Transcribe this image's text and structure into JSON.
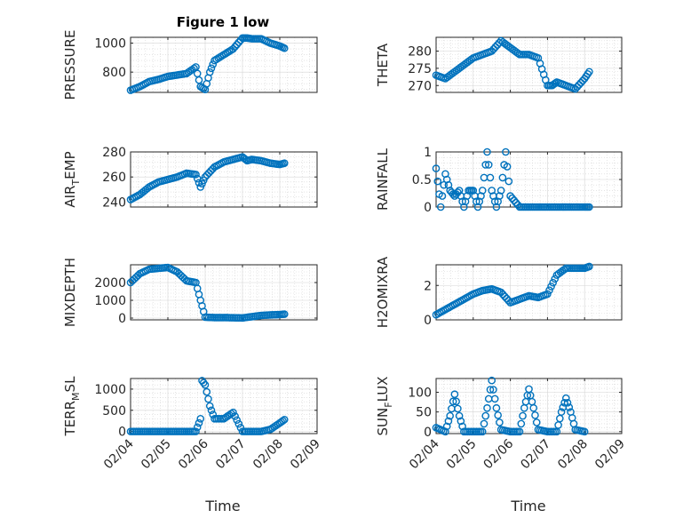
{
  "figure": {
    "title": "Figure 1 low",
    "xlabel": "Time",
    "date_ticks": [
      "02/04",
      "02/05",
      "02/06",
      "02/07",
      "02/08",
      "02/09"
    ]
  },
  "colors": {
    "marker": "#0072BD",
    "axis": "#262626",
    "grid": "#d4d4d4"
  },
  "chart_data": [
    {
      "type": "scatter",
      "key": "pressure",
      "ylabel": "PRESSURE",
      "ylabel_sub": "",
      "ylim": [
        660,
        1040
      ],
      "yticks": [
        800,
        1000
      ],
      "ytick_labels": [
        "800",
        "1000"
      ],
      "x": [
        "02/04 00:00",
        "02/04 06:00",
        "02/04 12:00",
        "02/04 18:00",
        "02/05 00:00",
        "02/05 06:00",
        "02/05 12:00",
        "02/05 18:00",
        "02/05 21:00",
        "02/06 00:00",
        "02/06 03:00",
        "02/06 06:00",
        "02/06 12:00",
        "02/06 18:00",
        "02/07 00:00",
        "02/07 03:00",
        "02/07 06:00",
        "02/07 12:00",
        "02/07 18:00",
        "02/08 00:00",
        "02/08 03:00"
      ],
      "values": [
        675,
        700,
        735,
        750,
        770,
        780,
        790,
        835,
        700,
        680,
        800,
        880,
        920,
        960,
        1035,
        1035,
        1030,
        1030,
        1000,
        980,
        965
      ]
    },
    {
      "type": "scatter",
      "key": "theta",
      "ylabel": "THETA",
      "ylabel_sub": "",
      "ylim": [
        268,
        284
      ],
      "yticks": [
        270,
        275,
        280
      ],
      "ytick_labels": [
        "270",
        "275",
        "280"
      ],
      "x": [
        "02/04 00:00",
        "02/04 06:00",
        "02/04 12:00",
        "02/04 18:00",
        "02/05 00:00",
        "02/05 06:00",
        "02/05 12:00",
        "02/05 18:00",
        "02/06 00:00",
        "02/06 06:00",
        "02/06 12:00",
        "02/06 18:00",
        "02/07 00:00",
        "02/07 03:00",
        "02/07 06:00",
        "02/07 12:00",
        "02/07 18:00",
        "02/08 00:00",
        "02/08 03:00"
      ],
      "values": [
        273,
        272,
        274,
        276,
        278,
        279,
        280,
        283,
        281,
        279,
        279,
        278,
        270,
        270,
        271,
        270,
        269,
        272,
        274
      ]
    },
    {
      "type": "scatter",
      "key": "air_temp",
      "ylabel": "AIR",
      "ylabel_sub": "T",
      "ylabel_rest": "EMP",
      "ylim": [
        236,
        280
      ],
      "yticks": [
        240,
        260,
        280
      ],
      "ytick_labels": [
        "240",
        "260",
        "280"
      ],
      "x": [
        "02/04 00:00",
        "02/04 06:00",
        "02/04 12:00",
        "02/04 18:00",
        "02/05 00:00",
        "02/05 06:00",
        "02/05 12:00",
        "02/05 18:00",
        "02/05 21:00",
        "02/06 00:00",
        "02/06 06:00",
        "02/06 12:00",
        "02/06 18:00",
        "02/07 00:00",
        "02/07 03:00",
        "02/07 06:00",
        "02/07 12:00",
        "02/07 18:00",
        "02/08 00:00",
        "02/08 03:00"
      ],
      "values": [
        242,
        246,
        252,
        256,
        258,
        260,
        263,
        262,
        252,
        260,
        268,
        272,
        274,
        276,
        273,
        274,
        273,
        271,
        270,
        271
      ]
    },
    {
      "type": "scatter",
      "key": "rainfall",
      "ylabel": "RAINFALL",
      "ylabel_sub": "",
      "ylim": [
        0,
        1
      ],
      "yticks": [
        0,
        0.5,
        1
      ],
      "ytick_labels": [
        "0",
        "0.5",
        "1"
      ],
      "x": [
        "02/04 00:00",
        "02/04 03:00",
        "02/04 06:00",
        "02/04 09:00",
        "02/04 12:00",
        "02/04 15:00",
        "02/04 18:00",
        "02/04 21:00",
        "02/05 00:00",
        "02/05 03:00",
        "02/05 06:00",
        "02/05 09:00",
        "02/05 12:00",
        "02/05 15:00",
        "02/05 18:00",
        "02/05 21:00",
        "02/06 00:00",
        "02/06 06:00",
        "02/06 12:00",
        "02/06 18:00",
        "02/07 00:00",
        "02/07 06:00",
        "02/07 12:00",
        "02/07 18:00",
        "02/08 00:00",
        "02/08 03:00"
      ],
      "values": [
        0.7,
        0,
        0.6,
        0.3,
        0.2,
        0.3,
        0,
        0.3,
        0.3,
        0,
        0.3,
        1,
        0.3,
        0,
        0.3,
        1,
        0.2,
        0,
        0,
        0,
        0,
        0,
        0,
        0,
        0,
        0
      ]
    },
    {
      "type": "scatter",
      "key": "mixdepth",
      "ylabel": "MIXDEPTH",
      "ylabel_sub": "",
      "ylim": [
        -100,
        3000
      ],
      "yticks": [
        0,
        1000,
        2000
      ],
      "ytick_labels": [
        "0",
        "1000",
        "2000"
      ],
      "x": [
        "02/04 00:00",
        "02/04 06:00",
        "02/04 12:00",
        "02/04 18:00",
        "02/05 00:00",
        "02/05 06:00",
        "02/05 12:00",
        "02/05 18:00",
        "02/05 21:00",
        "02/06 00:00",
        "02/06 06:00",
        "02/06 12:00",
        "02/06 18:00",
        "02/07 00:00",
        "02/07 06:00",
        "02/07 12:00",
        "02/07 18:00",
        "02/08 00:00",
        "02/08 03:00"
      ],
      "values": [
        2000,
        2500,
        2750,
        2800,
        2850,
        2600,
        2100,
        2000,
        1000,
        50,
        30,
        30,
        20,
        10,
        80,
        150,
        180,
        200,
        220
      ]
    },
    {
      "type": "scatter",
      "key": "h2omixra",
      "ylabel": "H2OMIXRA",
      "ylabel_sub": "",
      "ylim": [
        0,
        3.2
      ],
      "yticks": [
        0,
        2
      ],
      "ytick_labels": [
        "0",
        "2"
      ],
      "x": [
        "02/04 00:00",
        "02/04 06:00",
        "02/04 12:00",
        "02/04 18:00",
        "02/05 00:00",
        "02/05 06:00",
        "02/05 12:00",
        "02/05 18:00",
        "02/06 00:00",
        "02/06 06:00",
        "02/06 12:00",
        "02/06 18:00",
        "02/07 00:00",
        "02/07 06:00",
        "02/07 12:00",
        "02/07 18:00",
        "02/08 00:00",
        "02/08 03:00"
      ],
      "values": [
        0.3,
        0.6,
        0.9,
        1.2,
        1.5,
        1.7,
        1.8,
        1.6,
        1.0,
        1.2,
        1.4,
        1.3,
        1.5,
        2.6,
        3.0,
        3.0,
        3.0,
        3.1
      ]
    },
    {
      "type": "scatter",
      "key": "terr_msl",
      "ylabel": "TERR",
      "ylabel_sub": "M",
      "ylabel_rest": "SL",
      "ylim": [
        -50,
        1250
      ],
      "yticks": [
        0,
        500,
        1000
      ],
      "ytick_labels": [
        "0",
        "500",
        "1000"
      ],
      "x": [
        "02/04 00:00",
        "02/04 06:00",
        "02/04 12:00",
        "02/04 18:00",
        "02/05 00:00",
        "02/05 06:00",
        "02/05 12:00",
        "02/05 18:00",
        "02/05 21:00",
        "02/05 22:00",
        "02/06 00:00",
        "02/06 03:00",
        "02/06 06:00",
        "02/06 12:00",
        "02/06 18:00",
        "02/07 00:00",
        "02/07 06:00",
        "02/07 12:00",
        "02/07 18:00",
        "02/08 00:00",
        "02/08 03:00"
      ],
      "values": [
        0,
        0,
        0,
        0,
        0,
        0,
        0,
        0,
        300,
        1200,
        1100,
        600,
        300,
        300,
        450,
        0,
        0,
        0,
        50,
        200,
        280
      ]
    },
    {
      "type": "scatter",
      "key": "sun_flux",
      "ylabel": "SUN",
      "ylabel_sub": "F",
      "ylabel_rest": "LUX",
      "ylim": [
        -5,
        135
      ],
      "yticks": [
        0,
        50,
        100
      ],
      "ytick_labels": [
        "0",
        "50",
        "100"
      ],
      "x": [
        "02/04 00:00",
        "02/04 06:00",
        "02/04 09:00",
        "02/04 12:00",
        "02/04 15:00",
        "02/04 18:00",
        "02/05 00:00",
        "02/05 06:00",
        "02/05 09:00",
        "02/05 12:00",
        "02/05 15:00",
        "02/05 18:00",
        "02/06 00:00",
        "02/06 06:00",
        "02/06 09:00",
        "02/06 12:00",
        "02/06 15:00",
        "02/06 18:00",
        "02/07 00:00",
        "02/07 06:00",
        "02/07 09:00",
        "02/07 12:00",
        "02/07 15:00",
        "02/07 18:00",
        "02/08 00:00"
      ],
      "values": [
        10,
        0,
        40,
        95,
        40,
        0,
        0,
        0,
        60,
        130,
        60,
        5,
        0,
        0,
        60,
        108,
        60,
        5,
        0,
        0,
        50,
        85,
        50,
        5,
        0
      ]
    }
  ]
}
